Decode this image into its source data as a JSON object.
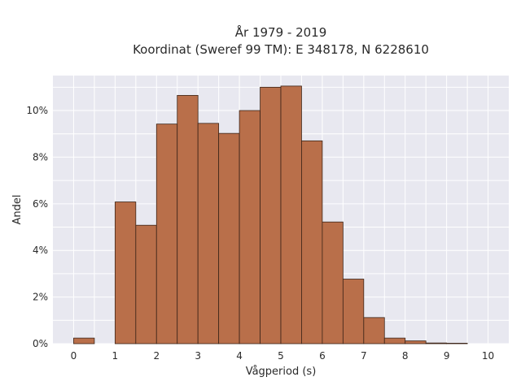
{
  "chart_data": {
    "type": "bar",
    "title_lines": [
      "År 1979 - 2019",
      "Koordinat (Sweref 99 TM): E 348178, N 6228610"
    ],
    "xlabel": "Vågperiod (s)",
    "ylabel": "Andel",
    "bin_width": 0.5,
    "bins": [
      {
        "start": 0.0,
        "value": 0.24
      },
      {
        "start": 1.0,
        "value": 6.08
      },
      {
        "start": 1.5,
        "value": 5.08
      },
      {
        "start": 2.0,
        "value": 9.42
      },
      {
        "start": 2.5,
        "value": 10.65
      },
      {
        "start": 3.0,
        "value": 9.45
      },
      {
        "start": 3.5,
        "value": 9.02
      },
      {
        "start": 4.0,
        "value": 10.0
      },
      {
        "start": 4.5,
        "value": 11.0
      },
      {
        "start": 5.0,
        "value": 11.05
      },
      {
        "start": 5.5,
        "value": 8.7
      },
      {
        "start": 6.0,
        "value": 5.22
      },
      {
        "start": 6.5,
        "value": 2.77
      },
      {
        "start": 7.0,
        "value": 1.12
      },
      {
        "start": 7.5,
        "value": 0.24
      },
      {
        "start": 8.0,
        "value": 0.12
      },
      {
        "start": 8.5,
        "value": 0.03
      },
      {
        "start": 9.0,
        "value": 0.02
      }
    ],
    "x_ticks": [
      "0",
      "1",
      "2",
      "3",
      "4",
      "5",
      "6",
      "7",
      "8",
      "9",
      "10"
    ],
    "y_ticks": [
      "0%",
      "2%",
      "4%",
      "6%",
      "8%",
      "10%"
    ],
    "xlim": [
      -0.5,
      10.5
    ],
    "ylim": [
      0,
      11.5
    ],
    "grid": true,
    "colors": {
      "bar_fill": "#b96f4a",
      "bar_stroke": "#3b2418",
      "plot_background": "#e8e8f0",
      "grid": "#ffffff"
    }
  }
}
